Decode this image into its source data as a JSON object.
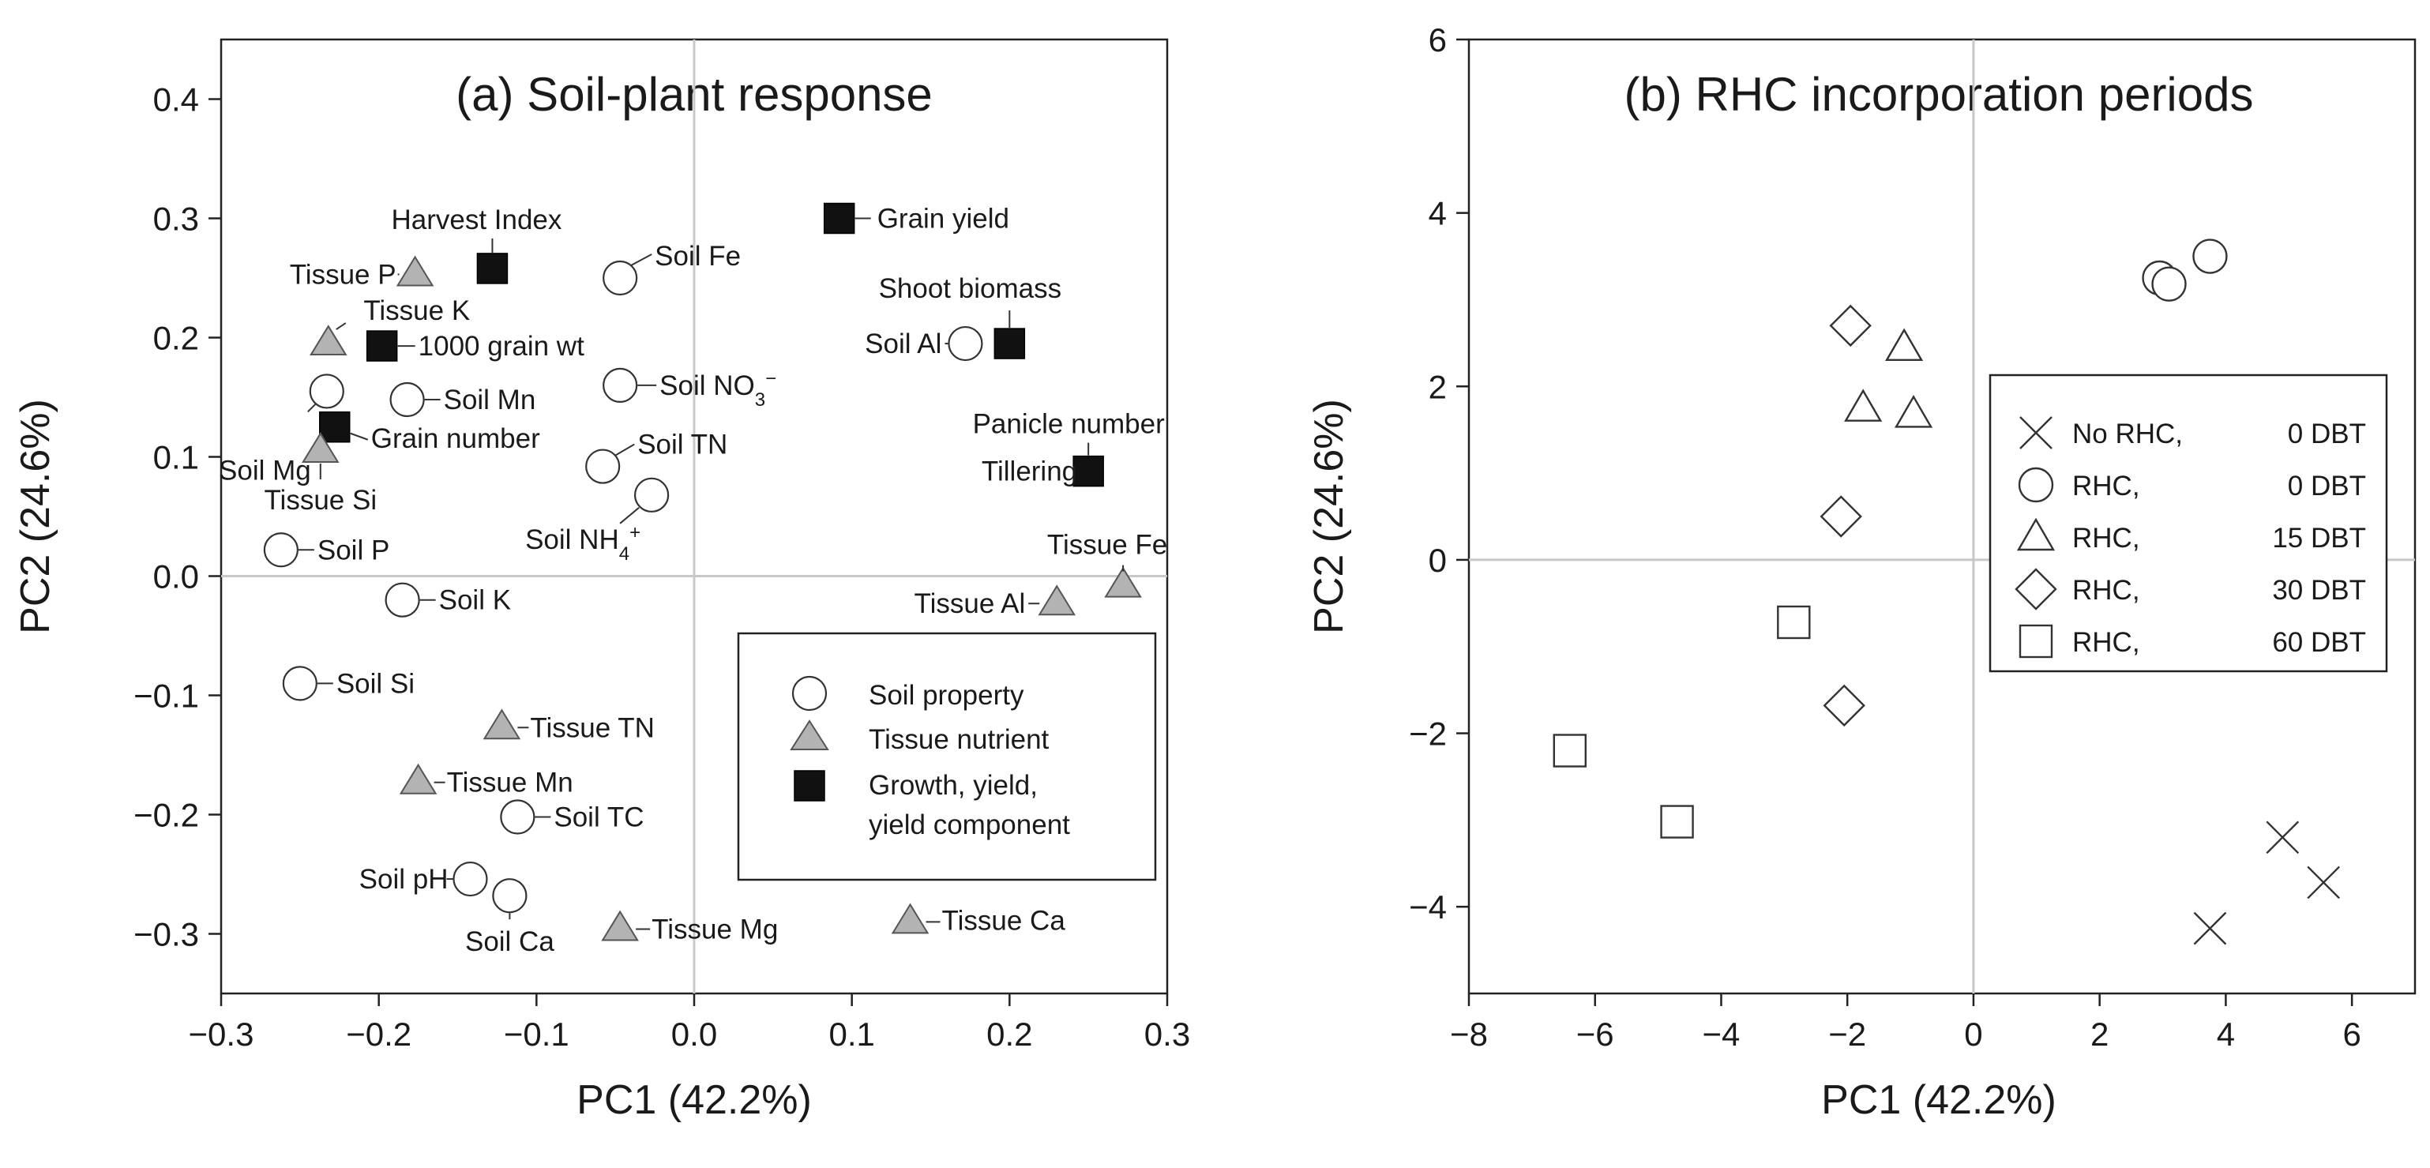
{
  "chart_data": [
    {
      "type": "scatter",
      "title": "(a) Soil-plant response",
      "xlabel": "PC1 (42.2%)",
      "ylabel": "PC2 (24.6%)",
      "xlim": [
        -0.3,
        0.3
      ],
      "ylim": [
        -0.35,
        0.45
      ],
      "xticks": [
        -0.3,
        -0.2,
        -0.1,
        0.0,
        0.1,
        0.2,
        0.3
      ],
      "yticks": [
        -0.3,
        -0.2,
        -0.1,
        0.0,
        0.1,
        0.2,
        0.3,
        0.4
      ],
      "xtick_labels": [
        "−0.3",
        "−0.2",
        "−0.1",
        "0.0",
        "0.1",
        "0.2",
        "0.3"
      ],
      "ytick_labels": [
        "−0.3",
        "−0.2",
        "−0.1",
        "0.0",
        "0.1",
        "0.2",
        "0.3",
        "0.4"
      ],
      "legend_position": "bottom-right",
      "legend": [
        {
          "marker": "circle",
          "label": "Soil property"
        },
        {
          "marker": "triangle",
          "label": "Tissue nutrient"
        },
        {
          "marker": "square",
          "label": "Growth, yield,",
          "label2": "yield component"
        }
      ],
      "points": [
        {
          "group": "growth",
          "x": 0.092,
          "y": 0.3,
          "label": "Grain yield"
        },
        {
          "group": "growth",
          "x": -0.128,
          "y": 0.258,
          "label": "Harvest Index"
        },
        {
          "group": "growth",
          "x": 0.2,
          "y": 0.195,
          "label": "Shoot biomass"
        },
        {
          "group": "growth",
          "x": -0.198,
          "y": 0.193,
          "label": "1000 grain wt"
        },
        {
          "group": "growth",
          "x": -0.228,
          "y": 0.125,
          "label": "Grain number"
        },
        {
          "group": "growth",
          "x": 0.25,
          "y": 0.088,
          "label": "Panicle number",
          "label2": "Tillering"
        },
        {
          "group": "soil",
          "x": -0.047,
          "y": 0.25,
          "label": "Soil Fe"
        },
        {
          "group": "soil",
          "x": 0.172,
          "y": 0.195,
          "label": "Soil Al"
        },
        {
          "group": "soil",
          "x": -0.047,
          "y": 0.16,
          "label": "Soil NO",
          "sub": "3",
          "sup": "−"
        },
        {
          "group": "soil",
          "x": -0.233,
          "y": 0.155,
          "label": "Soil Mg"
        },
        {
          "group": "soil",
          "x": -0.182,
          "y": 0.148,
          "label": "Soil Mn"
        },
        {
          "group": "soil",
          "x": -0.058,
          "y": 0.092,
          "label": "Soil TN"
        },
        {
          "group": "soil",
          "x": -0.027,
          "y": 0.068,
          "label": "Soil NH",
          "sub": "4",
          "sup": "+"
        },
        {
          "group": "soil",
          "x": -0.262,
          "y": 0.022,
          "label": "Soil P"
        },
        {
          "group": "soil",
          "x": -0.185,
          "y": -0.02,
          "label": "Soil K"
        },
        {
          "group": "soil",
          "x": -0.25,
          "y": -0.09,
          "label": "Soil Si"
        },
        {
          "group": "soil",
          "x": -0.112,
          "y": -0.202,
          "label": "Soil TC"
        },
        {
          "group": "soil",
          "x": -0.142,
          "y": -0.254,
          "label": "Soil pH"
        },
        {
          "group": "soil",
          "x": -0.117,
          "y": -0.268,
          "label": "Soil Ca"
        },
        {
          "group": "tissue",
          "x": -0.177,
          "y": 0.253,
          "label": "Tissue P"
        },
        {
          "group": "tissue",
          "x": -0.232,
          "y": 0.195,
          "label": "Tissue K"
        },
        {
          "group": "tissue",
          "x": -0.237,
          "y": 0.105,
          "label": "Tissue Si"
        },
        {
          "group": "tissue",
          "x": 0.272,
          "y": -0.008,
          "label": "Tissue Fe"
        },
        {
          "group": "tissue",
          "x": 0.23,
          "y": -0.023,
          "label": "Tissue Al"
        },
        {
          "group": "tissue",
          "x": -0.122,
          "y": -0.127,
          "label": "Tissue TN"
        },
        {
          "group": "tissue",
          "x": -0.175,
          "y": -0.173,
          "label": "Tissue Mn"
        },
        {
          "group": "tissue",
          "x": -0.047,
          "y": -0.296,
          "label": "Tissue Mg"
        },
        {
          "group": "tissue",
          "x": 0.137,
          "y": -0.29,
          "label": "Tissue Ca"
        }
      ]
    },
    {
      "type": "scatter",
      "title": "(b) RHC incorporation periods",
      "xlabel": "PC1 (42.2%)",
      "ylabel": "PC2 (24.6%)",
      "xlim": [
        -8,
        7
      ],
      "ylim": [
        -5,
        6
      ],
      "xticks": [
        -8,
        -6,
        -4,
        -2,
        0,
        2,
        4,
        6
      ],
      "yticks": [
        -4,
        -2,
        0,
        2,
        4,
        6
      ],
      "xtick_labels": [
        "−8",
        "−6",
        "−4",
        "−2",
        "0",
        "2",
        "4",
        "6"
      ],
      "ytick_labels": [
        "−4",
        "−2",
        "0",
        "2",
        "4",
        "6"
      ],
      "legend_position": "right",
      "series": [
        {
          "name": "No RHC, 0 DBT",
          "n1": "No RHC,",
          "n2": "0 DBT",
          "marker": "cross",
          "x": [
            3.75,
            4.9,
            5.55
          ],
          "y": [
            -4.25,
            -3.2,
            -3.72
          ]
        },
        {
          "name": "RHC, 0 DBT",
          "n1": "RHC,",
          "n2": "0 DBT",
          "marker": "circle",
          "x": [
            2.95,
            3.1,
            3.75
          ],
          "y": [
            3.25,
            3.18,
            3.5
          ]
        },
        {
          "name": "RHC, 15 DBT",
          "n1": "RHC,",
          "n2": "15 DBT",
          "marker": "triangle",
          "x": [
            -1.1,
            -1.75,
            -0.95
          ],
          "y": [
            2.45,
            1.75,
            1.68
          ]
        },
        {
          "name": "RHC, 30 DBT",
          "n1": "RHC,",
          "n2": "30 DBT",
          "marker": "diamond",
          "x": [
            -1.95,
            -2.1,
            -2.05
          ],
          "y": [
            2.7,
            0.5,
            -1.68
          ]
        },
        {
          "name": "RHC, 60 DBT",
          "n1": "RHC,",
          "n2": "60 DBT",
          "marker": "square",
          "x": [
            -2.85,
            -6.4,
            -4.7
          ],
          "y": [
            -0.72,
            -2.2,
            -3.02
          ]
        }
      ]
    }
  ]
}
